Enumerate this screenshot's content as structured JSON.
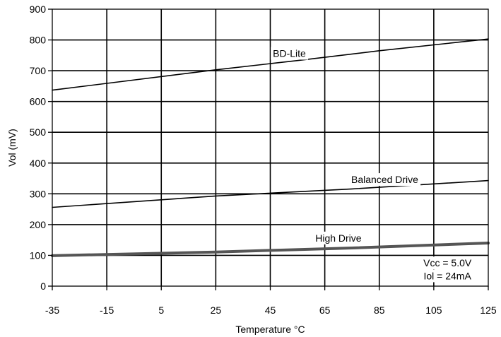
{
  "chart_data": {
    "type": "line",
    "title": "",
    "xlabel": "Temperature °C",
    "ylabel": "Vol (mV)",
    "xlim": [
      -35,
      125
    ],
    "ylim": [
      0,
      900
    ],
    "x_ticks": [
      -35,
      -15,
      5,
      25,
      45,
      65,
      85,
      105,
      125
    ],
    "x_tick_labels": [
      "-35",
      "-15",
      "5",
      "25",
      "45",
      "65",
      "85",
      "105",
      "125"
    ],
    "y_ticks": [
      0,
      100,
      200,
      300,
      400,
      500,
      600,
      700,
      800,
      900
    ],
    "y_tick_labels": [
      "0",
      "100",
      "200",
      "300",
      "400",
      "500",
      "600",
      "700",
      "800",
      "900"
    ],
    "grid": true,
    "legend": "none",
    "series": [
      {
        "name": "BD-Lite",
        "x": [
          -35,
          25,
          55,
          85,
          125
        ],
        "y": [
          637,
          703,
          733,
          765,
          803
        ],
        "color": "#000000"
      },
      {
        "name": "Balanced Drive",
        "x": [
          -35,
          25,
          75,
          125
        ],
        "y": [
          256,
          293,
          316,
          343
        ],
        "color": "#000000"
      },
      {
        "name": "High Drive",
        "x": [
          -35,
          25,
          75,
          125
        ],
        "y": [
          99,
          111,
          124,
          140
        ],
        "color": "#555555"
      }
    ],
    "annotations": [
      {
        "text": "BD-Lite",
        "x": 52,
        "y": 745
      },
      {
        "text": "Balanced Drive",
        "x": 87,
        "y": 335
      },
      {
        "text": "High Drive",
        "x": 70,
        "y": 145
      },
      {
        "text": "Vcc = 5.0V",
        "x": 110,
        "y": 64
      },
      {
        "text": "Iol = 24mA",
        "x": 110,
        "y": 22
      }
    ]
  }
}
